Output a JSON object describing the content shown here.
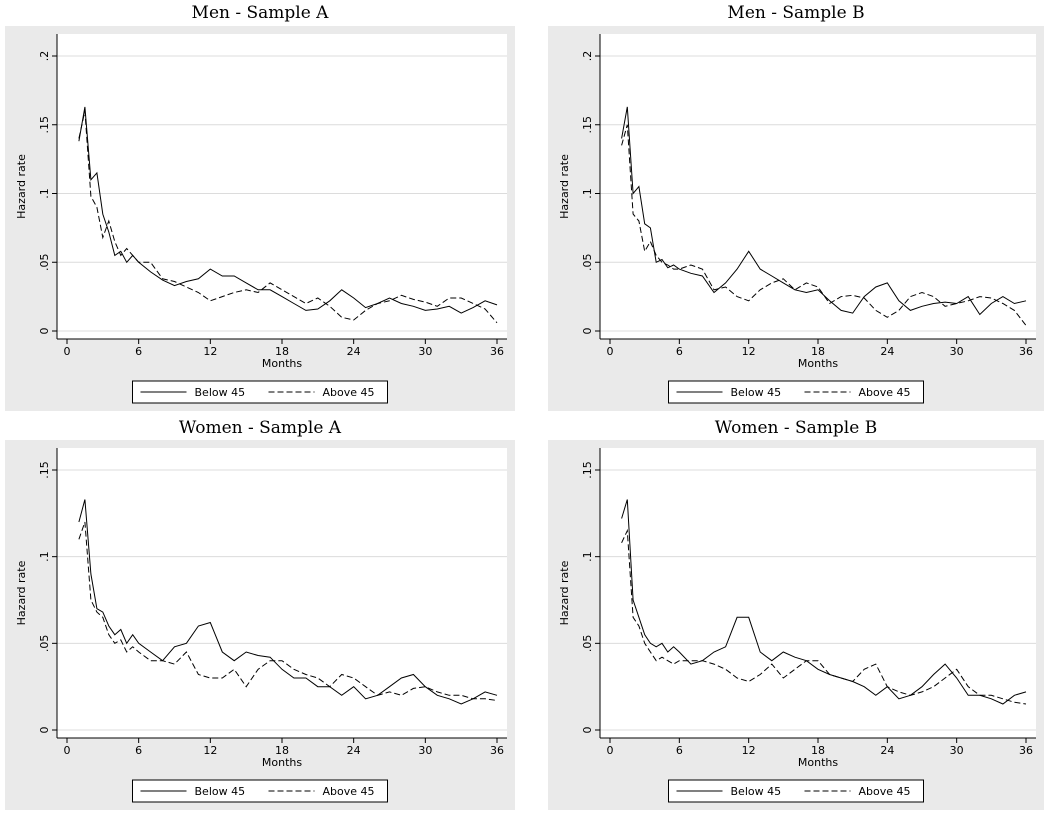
{
  "chart_data": [
    {
      "type": "line",
      "title": "Men - Sample A",
      "xlabel": "Months",
      "ylabel": "Hazard rate",
      "xlim": [
        0,
        36
      ],
      "ylim": [
        0,
        0.2
      ],
      "xticks": [
        "0",
        "6",
        "12",
        "18",
        "24",
        "30",
        "36"
      ],
      "yticks": [
        "0",
        ".05",
        ".1",
        ".15",
        ".2"
      ],
      "x": [
        1,
        1.5,
        2,
        2.5,
        3,
        3.5,
        4,
        4.5,
        5,
        5.5,
        6,
        7,
        8,
        9,
        10,
        11,
        12,
        13,
        14,
        15,
        16,
        17,
        18,
        19,
        20,
        21,
        22,
        23,
        24,
        25,
        26,
        27,
        28,
        29,
        30,
        31,
        32,
        33,
        34,
        35,
        36
      ],
      "series": [
        {
          "name": "Below 45",
          "values": [
            0.138,
            0.163,
            0.11,
            0.115,
            0.085,
            0.072,
            0.055,
            0.058,
            0.05,
            0.055,
            0.05,
            0.043,
            0.037,
            0.033,
            0.036,
            0.038,
            0.045,
            0.04,
            0.04,
            0.035,
            0.03,
            0.03,
            0.025,
            0.02,
            0.015,
            0.016,
            0.022,
            0.03,
            0.024,
            0.017,
            0.02,
            0.024,
            0.02,
            0.018,
            0.015,
            0.016,
            0.018,
            0.013,
            0.017,
            0.022,
            0.019
          ]
        },
        {
          "name": "Above 45",
          "values": [
            0.14,
            0.16,
            0.098,
            0.09,
            0.068,
            0.08,
            0.065,
            0.055,
            0.06,
            0.055,
            0.05,
            0.05,
            0.038,
            0.036,
            0.032,
            0.028,
            0.022,
            0.025,
            0.028,
            0.03,
            0.028,
            0.035,
            0.03,
            0.025,
            0.02,
            0.024,
            0.018,
            0.01,
            0.008,
            0.015,
            0.02,
            0.022,
            0.026,
            0.023,
            0.021,
            0.018,
            0.024,
            0.024,
            0.02,
            0.016,
            0.006
          ]
        }
      ]
    },
    {
      "type": "line",
      "title": "Men - Sample B",
      "xlabel": "Months",
      "ylabel": "Hazard rate",
      "xlim": [
        0,
        36
      ],
      "ylim": [
        0,
        0.2
      ],
      "xticks": [
        "0",
        "6",
        "12",
        "18",
        "24",
        "30",
        "36"
      ],
      "yticks": [
        "0",
        ".05",
        ".1",
        ".15",
        ".2"
      ],
      "x": [
        1,
        1.5,
        2,
        2.5,
        3,
        3.5,
        4,
        4.5,
        5,
        5.5,
        6,
        7,
        8,
        9,
        10,
        11,
        12,
        13,
        14,
        15,
        16,
        17,
        18,
        19,
        20,
        21,
        22,
        23,
        24,
        25,
        26,
        27,
        28,
        29,
        30,
        31,
        32,
        33,
        34,
        35,
        36
      ],
      "series": [
        {
          "name": "Below 45",
          "values": [
            0.14,
            0.163,
            0.1,
            0.105,
            0.078,
            0.075,
            0.05,
            0.052,
            0.046,
            0.048,
            0.045,
            0.042,
            0.04,
            0.028,
            0.035,
            0.045,
            0.058,
            0.045,
            0.04,
            0.035,
            0.03,
            0.028,
            0.03,
            0.022,
            0.015,
            0.013,
            0.025,
            0.032,
            0.035,
            0.022,
            0.015,
            0.018,
            0.02,
            0.021,
            0.02,
            0.025,
            0.012,
            0.02,
            0.025,
            0.02,
            0.022
          ]
        },
        {
          "name": "Above 45",
          "values": [
            0.135,
            0.15,
            0.085,
            0.08,
            0.058,
            0.065,
            0.055,
            0.05,
            0.048,
            0.045,
            0.045,
            0.048,
            0.045,
            0.03,
            0.032,
            0.025,
            0.022,
            0.03,
            0.035,
            0.038,
            0.03,
            0.035,
            0.032,
            0.02,
            0.025,
            0.026,
            0.024,
            0.015,
            0.01,
            0.015,
            0.025,
            0.028,
            0.025,
            0.018,
            0.02,
            0.022,
            0.025,
            0.024,
            0.02,
            0.015,
            0.004
          ]
        }
      ]
    },
    {
      "type": "line",
      "title": "Women - Sample A",
      "xlabel": "Months",
      "ylabel": "Hazard rate",
      "xlim": [
        0,
        36
      ],
      "ylim": [
        0,
        0.15
      ],
      "xticks": [
        "0",
        "6",
        "12",
        "18",
        "24",
        "30",
        "36"
      ],
      "yticks": [
        "0",
        ".05",
        ".1",
        ".15"
      ],
      "x": [
        1,
        1.5,
        2,
        2.5,
        3,
        3.5,
        4,
        4.5,
        5,
        5.5,
        6,
        7,
        8,
        9,
        10,
        11,
        12,
        13,
        14,
        15,
        16,
        17,
        18,
        19,
        20,
        21,
        22,
        23,
        24,
        25,
        26,
        27,
        28,
        29,
        30,
        31,
        32,
        33,
        34,
        35,
        36
      ],
      "series": [
        {
          "name": "Below 45",
          "values": [
            0.12,
            0.133,
            0.09,
            0.07,
            0.068,
            0.06,
            0.055,
            0.058,
            0.05,
            0.055,
            0.05,
            0.045,
            0.04,
            0.048,
            0.05,
            0.06,
            0.062,
            0.045,
            0.04,
            0.045,
            0.043,
            0.042,
            0.035,
            0.03,
            0.03,
            0.025,
            0.025,
            0.02,
            0.025,
            0.018,
            0.02,
            0.025,
            0.03,
            0.032,
            0.025,
            0.02,
            0.018,
            0.015,
            0.018,
            0.022,
            0.02
          ]
        },
        {
          "name": "Above 45",
          "values": [
            0.11,
            0.12,
            0.075,
            0.068,
            0.065,
            0.055,
            0.05,
            0.052,
            0.045,
            0.048,
            0.045,
            0.04,
            0.04,
            0.038,
            0.045,
            0.032,
            0.03,
            0.03,
            0.035,
            0.025,
            0.035,
            0.04,
            0.04,
            0.035,
            0.032,
            0.03,
            0.025,
            0.032,
            0.03,
            0.025,
            0.02,
            0.022,
            0.02,
            0.024,
            0.025,
            0.022,
            0.02,
            0.02,
            0.018,
            0.018,
            0.017
          ]
        }
      ]
    },
    {
      "type": "line",
      "title": "Women - Sample B",
      "xlabel": "Months",
      "ylabel": "Hazard rate",
      "xlim": [
        0,
        36
      ],
      "ylim": [
        0,
        0.15
      ],
      "xticks": [
        "0",
        "6",
        "12",
        "18",
        "24",
        "30",
        "36"
      ],
      "yticks": [
        "0",
        ".05",
        ".1",
        ".15"
      ],
      "x": [
        1,
        1.5,
        2,
        2.5,
        3,
        3.5,
        4,
        4.5,
        5,
        5.5,
        6,
        7,
        8,
        9,
        10,
        11,
        12,
        13,
        14,
        15,
        16,
        17,
        18,
        19,
        20,
        21,
        22,
        23,
        24,
        25,
        26,
        27,
        28,
        29,
        30,
        31,
        32,
        33,
        34,
        35,
        36
      ],
      "series": [
        {
          "name": "Below 45",
          "values": [
            0.122,
            0.133,
            0.075,
            0.065,
            0.055,
            0.05,
            0.048,
            0.05,
            0.045,
            0.048,
            0.045,
            0.038,
            0.04,
            0.045,
            0.048,
            0.065,
            0.065,
            0.045,
            0.04,
            0.045,
            0.042,
            0.04,
            0.035,
            0.032,
            0.03,
            0.028,
            0.025,
            0.02,
            0.025,
            0.018,
            0.02,
            0.025,
            0.032,
            0.038,
            0.03,
            0.02,
            0.02,
            0.018,
            0.015,
            0.02,
            0.022
          ]
        },
        {
          "name": "Above 45",
          "values": [
            0.108,
            0.115,
            0.065,
            0.06,
            0.05,
            0.045,
            0.04,
            0.042,
            0.04,
            0.038,
            0.04,
            0.04,
            0.04,
            0.038,
            0.035,
            0.03,
            0.028,
            0.032,
            0.038,
            0.03,
            0.035,
            0.04,
            0.04,
            0.032,
            0.03,
            0.028,
            0.035,
            0.038,
            0.025,
            0.022,
            0.02,
            0.022,
            0.025,
            0.03,
            0.035,
            0.025,
            0.02,
            0.02,
            0.018,
            0.016,
            0.015
          ]
        }
      ]
    }
  ],
  "colors": {
    "panel_background": "#eaeaea",
    "plot_background": "#ffffff",
    "grid": "#dcdcdc",
    "line": "#000000"
  }
}
